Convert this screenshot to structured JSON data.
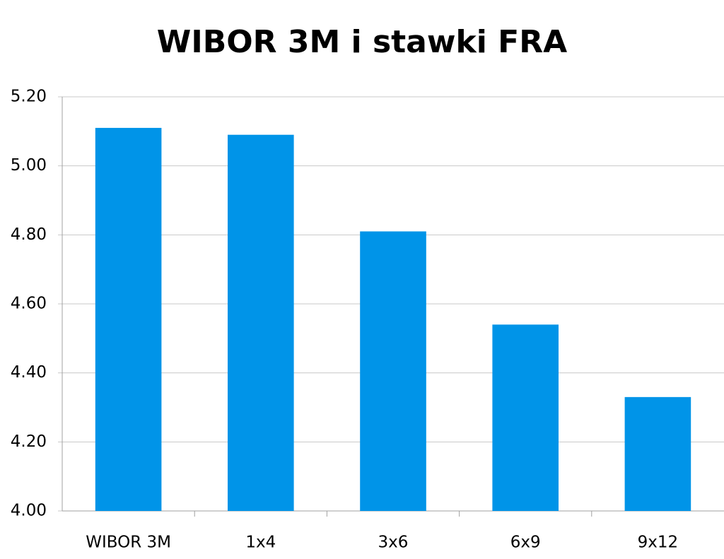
{
  "chart_data": {
    "type": "bar",
    "title": "WIBOR 3M i stawki FRA",
    "categories": [
      "WIBOR 3M",
      "1x4",
      "3x6",
      "6x9",
      "9x12"
    ],
    "values": [
      5.11,
      5.09,
      4.81,
      4.54,
      4.33
    ],
    "color": "#0094e8",
    "ylim": [
      4.0,
      5.2
    ],
    "yticks": [
      {
        "value": 4.0,
        "label": "4.00"
      },
      {
        "value": 4.2,
        "label": "4.20"
      },
      {
        "value": 4.4,
        "label": "4.40"
      },
      {
        "value": 4.6,
        "label": "4.60"
      },
      {
        "value": 4.8,
        "label": "4.80"
      },
      {
        "value": 5.0,
        "label": "5.00"
      },
      {
        "value": 5.2,
        "label": "5.20"
      }
    ],
    "grid": true
  }
}
